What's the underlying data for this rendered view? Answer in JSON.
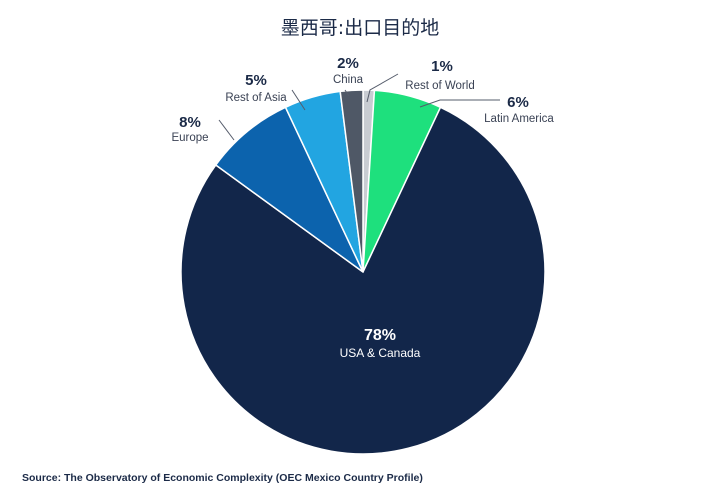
{
  "chart_data": {
    "type": "pie",
    "title": "墨西哥:出口目的地",
    "source": "Source: The Observatory of Economic Complexity (OEC Mexico Country Profile)",
    "slices": [
      {
        "label": "Rest of World",
        "value": 1,
        "value_label": "1%",
        "color": "#c8ccd2"
      },
      {
        "label": "Latin America",
        "value": 6,
        "value_label": "6%",
        "color": "#1ee07d"
      },
      {
        "label": "USA & Canada",
        "value": 78,
        "value_label": "78%",
        "color": "#12264a"
      },
      {
        "label": "Europe",
        "value": 8,
        "value_label": "8%",
        "color": "#0c63ad"
      },
      {
        "label": "Rest of Asia",
        "value": 5,
        "value_label": "5%",
        "color": "#22a5e1"
      },
      {
        "label": "China",
        "value": 2,
        "value_label": "2%",
        "color": "#4f5866"
      }
    ]
  }
}
